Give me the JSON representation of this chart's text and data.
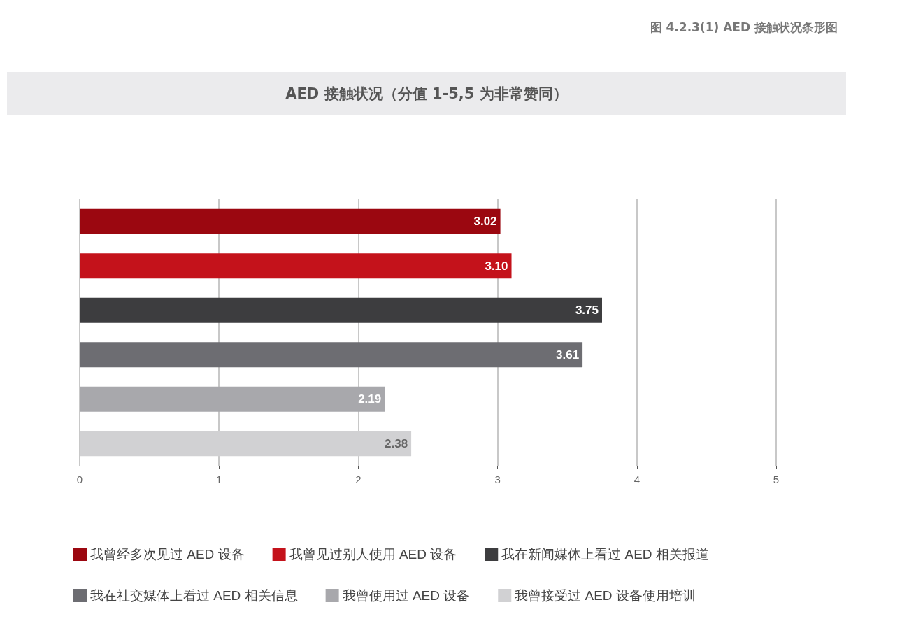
{
  "chart_data": {
    "type": "bar",
    "orientation": "horizontal",
    "title": "AED 接触状况（分值 1-5,5 为非常赞同）",
    "annotations": [
      "图 4.2.3(1) AED 接触状况条形图"
    ],
    "categories": [
      null,
      null,
      null,
      null,
      null,
      null
    ],
    "series": [
      {
        "name": "我曾经多次见过 AED 设备",
        "color": "#9b0710",
        "values": [
          3.02,
          null,
          null,
          null,
          null,
          null
        ],
        "value_labels": [
          "3.02",
          null,
          null,
          null,
          null,
          null
        ]
      },
      {
        "name": "我曾见过别人使用 AED 设备",
        "color": "#c4121b",
        "values": [
          null,
          3.1,
          null,
          null,
          null,
          null
        ],
        "value_labels": [
          null,
          "3.10",
          null,
          null,
          null,
          null
        ]
      },
      {
        "name": "我在新闻媒体上看过 AED 相关报道",
        "color": "#3d3d3f",
        "values": [
          null,
          null,
          3.75,
          null,
          null,
          null
        ],
        "value_labels": [
          null,
          null,
          "3.75",
          null,
          null,
          null
        ]
      },
      {
        "name": "我在社交媒体上看过 AED 相关信息",
        "color": "#6d6d72",
        "values": [
          null,
          null,
          null,
          3.61,
          null,
          null
        ],
        "value_labels": [
          null,
          null,
          null,
          "3.61",
          null,
          null
        ]
      },
      {
        "name": "我曾使用过 AED 设备",
        "color": "#a8a8ac",
        "values": [
          null,
          null,
          null,
          null,
          2.19,
          null
        ],
        "value_labels": [
          null,
          null,
          null,
          null,
          "2.19",
          null
        ]
      },
      {
        "name": "我曾接受过 AED 设备使用培训",
        "color": "#d1d1d3",
        "values": [
          null,
          null,
          null,
          null,
          null,
          2.38
        ],
        "value_labels": [
          null,
          null,
          null,
          null,
          null,
          "2.38"
        ]
      }
    ],
    "xlim": [
      0,
      5
    ],
    "xticks": [
      0,
      1,
      2,
      3,
      4,
      5
    ],
    "grid": "x",
    "legend": "bottom",
    "tick_labels": "x"
  }
}
